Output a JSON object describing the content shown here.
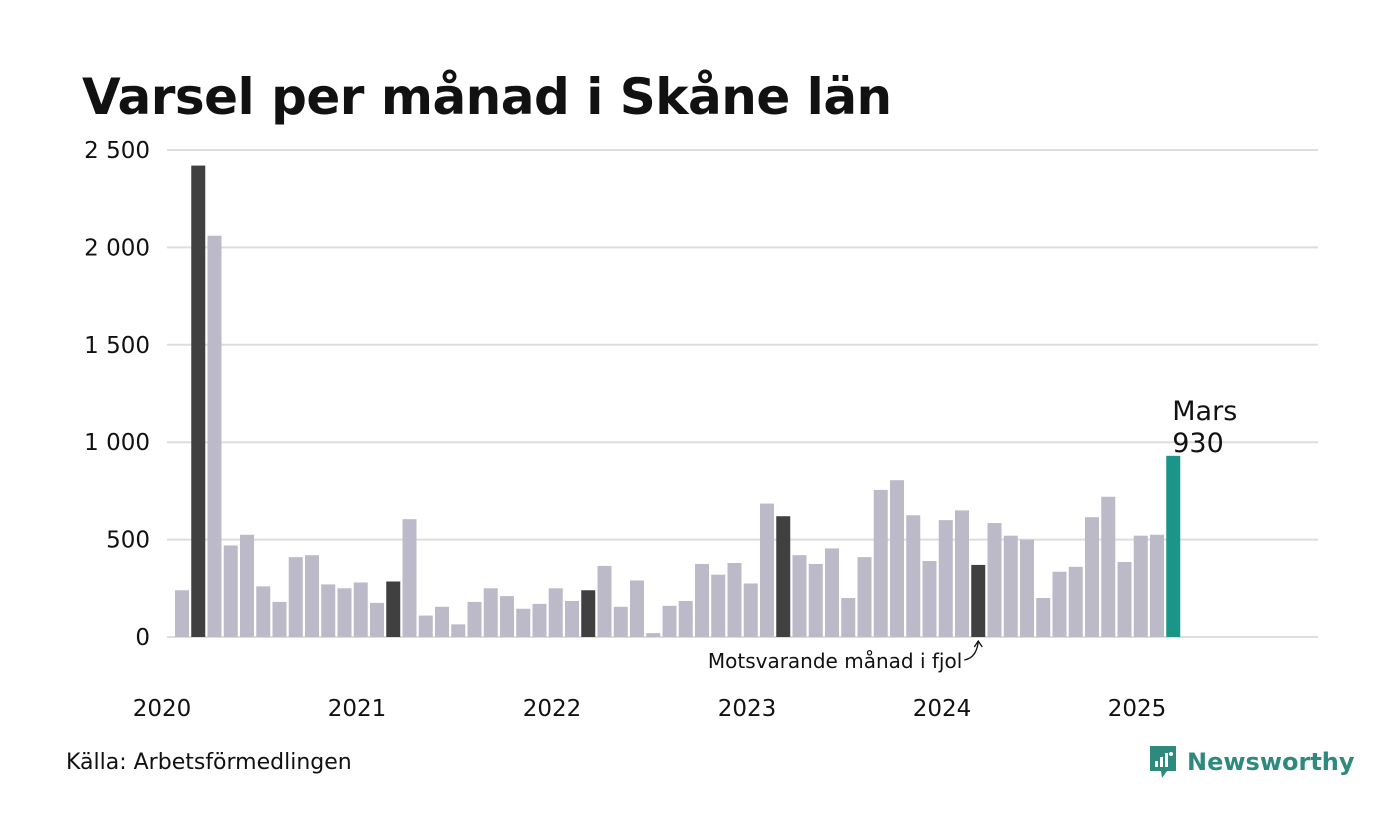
{
  "title": "Varsel per månad i Skåne län",
  "source": "Källa: Arbetsförmedlingen",
  "brand": "Newsworthy",
  "colors": {
    "bar": "#bcbac8",
    "same_month_prev_year": "#404040",
    "current": "#1a9688",
    "grid": "#dddddd",
    "brand": "#2f8a7e"
  },
  "chart_data": {
    "type": "bar",
    "title": "Varsel per månad i Skåne län",
    "xlabel": "",
    "ylabel": "",
    "ylim": [
      0,
      2500
    ],
    "yticks": [
      0,
      500,
      1000,
      1500,
      2000,
      2500
    ],
    "ytick_labels": [
      "0",
      "500",
      "1 000",
      "1 500",
      "2 000",
      "2 500"
    ],
    "xtick_labels": [
      "2020",
      "2021",
      "2022",
      "2023",
      "2024",
      "2025"
    ],
    "grid": true,
    "start": "2020-02",
    "values": [
      240,
      2420,
      2060,
      470,
      525,
      260,
      180,
      410,
      420,
      270,
      250,
      280,
      175,
      285,
      605,
      110,
      155,
      65,
      180,
      250,
      210,
      145,
      170,
      250,
      185,
      240,
      365,
      155,
      290,
      20,
      160,
      185,
      375,
      320,
      380,
      275,
      685,
      620,
      420,
      375,
      455,
      200,
      410,
      755,
      805,
      625,
      390,
      600,
      650,
      370,
      585,
      520,
      500,
      200,
      335,
      360,
      615,
      720,
      385,
      520,
      525,
      930
    ],
    "highlight_prev_year_indices": [
      1,
      13,
      25,
      37,
      49
    ],
    "current_index": 61,
    "current_label": {
      "month": "Mars",
      "value": "930"
    },
    "annotation": "Motsvarande månad i fjol"
  }
}
